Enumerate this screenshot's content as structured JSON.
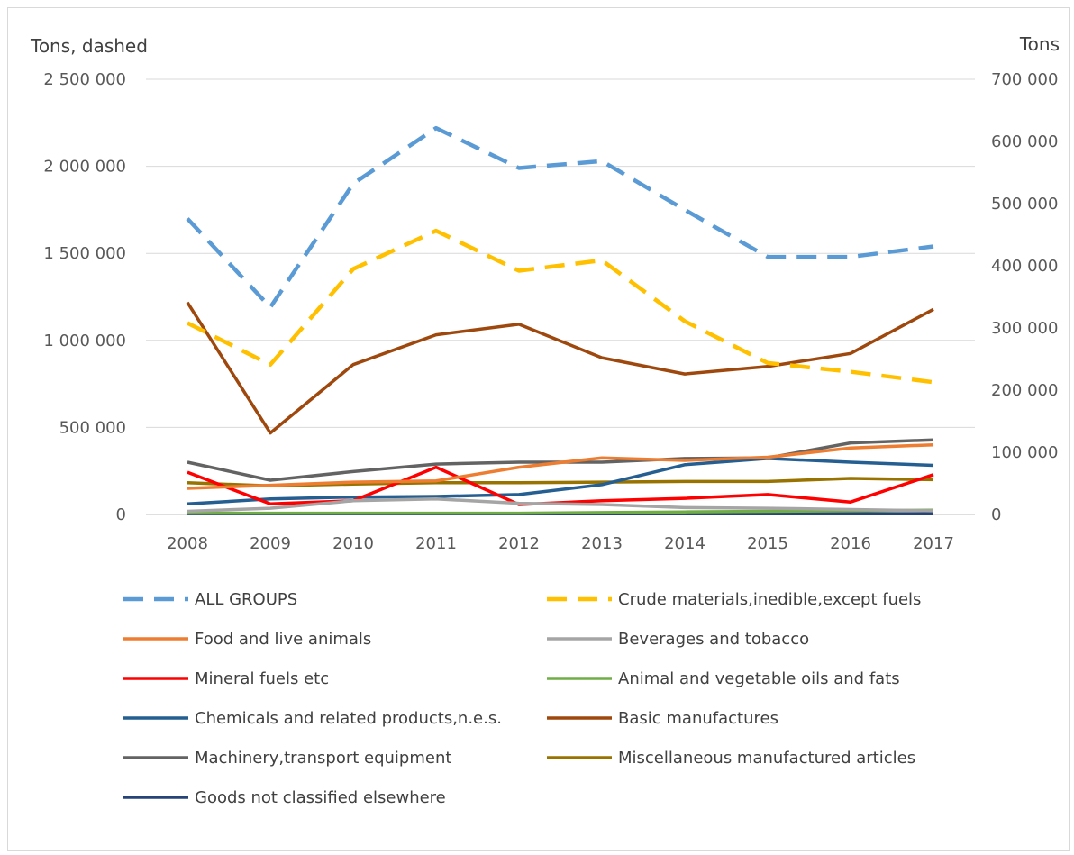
{
  "chart_data": {
    "type": "line",
    "left_axis": {
      "title": "Tons, dashed",
      "ylim": [
        0,
        2500000
      ],
      "ticks": [
        0,
        500000,
        1000000,
        1500000,
        2000000,
        2500000
      ],
      "tick_labels": [
        "0",
        "500 000",
        "1 000 000",
        "1 500 000",
        "2 000 000",
        "2 500 000"
      ]
    },
    "right_axis": {
      "title": "Tons",
      "ylim": [
        0,
        700000
      ],
      "ticks": [
        0,
        100000,
        200000,
        300000,
        400000,
        500000,
        600000,
        700000
      ],
      "tick_labels": [
        "0",
        "100 000",
        "200 000",
        "300 000",
        "400 000",
        "500 000",
        "600 000",
        "700 000"
      ]
    },
    "categories": [
      "2008",
      "2009",
      "2010",
      "2011",
      "2012",
      "2013",
      "2014",
      "2015",
      "2016",
      "2017"
    ],
    "grid": true,
    "legend_position": "bottom",
    "series": [
      {
        "name": "ALL GROUPS",
        "axis": "left",
        "dashed": true,
        "color": "#5b9bd5",
        "values": [
          1700000,
          1190000,
          1900000,
          2220000,
          1990000,
          2030000,
          1750000,
          1480000,
          1480000,
          1540000
        ]
      },
      {
        "name": "Crude materials,inedible,except fuels",
        "axis": "left",
        "dashed": true,
        "color": "#ffc000",
        "values": [
          1100000,
          860000,
          1410000,
          1630000,
          1400000,
          1460000,
          1110000,
          870000,
          820000,
          760000
        ]
      },
      {
        "name": "Food and live animals",
        "axis": "right",
        "dashed": false,
        "color": "#ed7d31",
        "values": [
          42000,
          47000,
          52000,
          54000,
          76000,
          91000,
          87000,
          92000,
          107000,
          112000
        ]
      },
      {
        "name": "Beverages and tobacco",
        "axis": "right",
        "dashed": false,
        "color": "#a5a5a5",
        "values": [
          5000,
          10000,
          22000,
          25000,
          18000,
          16000,
          11000,
          10000,
          8000,
          6000
        ]
      },
      {
        "name": "Mineral fuels etc",
        "axis": "right",
        "dashed": false,
        "color": "#ff0000",
        "values": [
          68000,
          17000,
          22000,
          76000,
          16000,
          22000,
          26000,
          32000,
          20000,
          64000
        ]
      },
      {
        "name": "Animal and vegetable oils and fats",
        "axis": "right",
        "dashed": false,
        "color": "#70ad47",
        "values": [
          2000,
          2000,
          2000,
          2000,
          2000,
          3000,
          4000,
          5000,
          6000,
          7000
        ]
      },
      {
        "name": "Chemicals and related products,n.e.s.",
        "axis": "right",
        "dashed": false,
        "color": "#255e91",
        "values": [
          17000,
          25000,
          28000,
          29000,
          32000,
          48000,
          80000,
          90000,
          84000,
          79000
        ]
      },
      {
        "name": "Basic manufactures",
        "axis": "right",
        "dashed": false,
        "color": "#9e480e",
        "values": [
          341000,
          131000,
          241000,
          289000,
          306000,
          252000,
          226000,
          238000,
          259000,
          330000
        ]
      },
      {
        "name": "Machinery,transport equipment",
        "axis": "right",
        "dashed": false,
        "color": "#636363",
        "values": [
          84000,
          55000,
          69000,
          81000,
          84000,
          84000,
          90000,
          91000,
          115000,
          120000
        ]
      },
      {
        "name": "Miscellaneous manufactured articles",
        "axis": "right",
        "dashed": false,
        "color": "#997300",
        "values": [
          51000,
          46000,
          49000,
          51000,
          51000,
          52000,
          53000,
          53000,
          58000,
          56000
        ]
      },
      {
        "name": "Goods not classified elsewhere",
        "axis": "right",
        "dashed": false,
        "color": "#264478",
        "values": [
          1000,
          1000,
          1000,
          1000,
          1000,
          1000,
          1000,
          1000,
          1000,
          1000
        ]
      }
    ]
  }
}
